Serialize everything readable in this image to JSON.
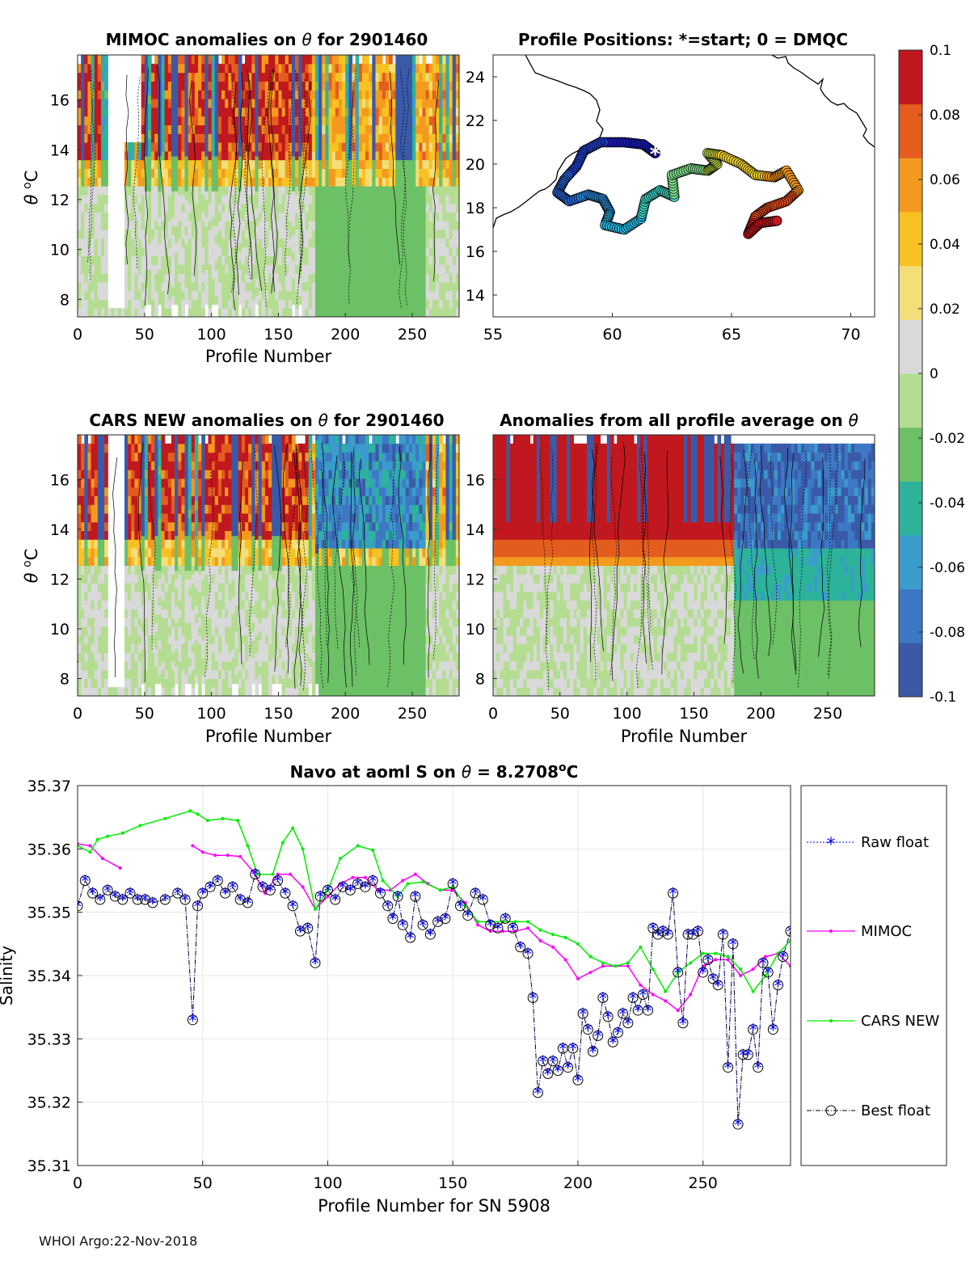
{
  "footer": "WHOI Argo:22-Nov-2018",
  "colorbar": {
    "ticks": [
      "0.1",
      "0.08",
      "0.06",
      "0.04",
      "0.02",
      "0",
      "-0.02",
      "-0.04",
      "-0.06",
      "-0.08",
      "-0.1"
    ],
    "range": [
      -0.1,
      0.1
    ],
    "colors": [
      "#3a5aa8",
      "#3d78c4",
      "#3a9ccb",
      "#2db39a",
      "#6cc066",
      "#b4dd92",
      "#d9d9d9",
      "#f2df7a",
      "#f7c224",
      "#f39a1e",
      "#e35d1f",
      "#c0181e"
    ]
  },
  "chart_data": [
    {
      "type": "heatmap",
      "title": "MIMOC anomalies on θ  for 2901460",
      "title_main": "MIMOC anomalies on ",
      "title_sym": "θ",
      "title_tail": "  for 2901460",
      "xlabel": "Profile Number",
      "ylabel": "θ °C",
      "xlim": [
        0,
        285
      ],
      "ylim": [
        7.3,
        17.8
      ],
      "xticks": [
        "0",
        "50",
        "100",
        "150",
        "200",
        "250"
      ],
      "yticks": [
        "8",
        "10",
        "12",
        "14",
        "16"
      ]
    },
    {
      "type": "scatter",
      "title": "Profile Positions: *=start; 0 = DMQC",
      "xlim": [
        55,
        71
      ],
      "ylim": [
        13,
        25
      ],
      "xticks": [
        "55",
        "60",
        "65",
        "70"
      ],
      "yticks": [
        "14",
        "16",
        "18",
        "20",
        "22",
        "24"
      ],
      "start": {
        "lon": 61.8,
        "lat": 20.5
      },
      "track": [
        [
          61.8,
          20.5
        ],
        [
          61.3,
          20.9
        ],
        [
          60.5,
          21.0
        ],
        [
          59.5,
          21.0
        ],
        [
          58.8,
          20.6
        ],
        [
          58.5,
          19.9
        ],
        [
          58.0,
          19.3
        ],
        [
          57.7,
          18.7
        ],
        [
          58.2,
          18.3
        ],
        [
          59.0,
          18.6
        ],
        [
          59.6,
          18.4
        ],
        [
          59.9,
          17.8
        ],
        [
          59.7,
          17.2
        ],
        [
          60.5,
          17.0
        ],
        [
          61.2,
          17.5
        ],
        [
          61.4,
          18.4
        ],
        [
          62.0,
          18.8
        ],
        [
          62.6,
          18.5
        ],
        [
          62.5,
          19.5
        ],
        [
          63.3,
          19.8
        ],
        [
          64.0,
          19.7
        ],
        [
          64.4,
          20.0
        ],
        [
          64.0,
          20.5
        ],
        [
          64.6,
          20.4
        ],
        [
          65.4,
          20.0
        ],
        [
          66.0,
          19.5
        ],
        [
          66.8,
          19.4
        ],
        [
          67.3,
          19.7
        ],
        [
          67.8,
          18.8
        ],
        [
          67.3,
          18.3
        ],
        [
          66.5,
          18.0
        ],
        [
          66.0,
          17.6
        ],
        [
          65.7,
          16.8
        ],
        [
          66.2,
          17.3
        ],
        [
          66.9,
          17.4
        ]
      ]
    },
    {
      "type": "heatmap",
      "title": "CARS NEW anomalies on θ for 2901460",
      "title_main": "CARS NEW anomalies on ",
      "title_sym": "θ",
      "title_tail": " for 2901460",
      "xlabel": "Profile Number",
      "ylabel": "θ °C",
      "xlim": [
        0,
        285
      ],
      "ylim": [
        7.3,
        17.8
      ],
      "xticks": [
        "0",
        "50",
        "100",
        "150",
        "200",
        "250"
      ],
      "yticks": [
        "8",
        "10",
        "12",
        "14",
        "16"
      ]
    },
    {
      "type": "heatmap",
      "title": "Anomalies from all profile average on θ",
      "title_main": "Anomalies from all profile average on ",
      "title_sym": "θ",
      "title_tail": "",
      "xlabel": "Profile Number",
      "xlim": [
        0,
        285
      ],
      "ylim": [
        7.3,
        17.8
      ],
      "xticks": [
        "0",
        "50",
        "100",
        "150",
        "200",
        "250"
      ],
      "yticks": [
        "8",
        "10",
        "12",
        "14",
        "16"
      ]
    },
    {
      "type": "line",
      "title": "Navo at aoml S on θ = 8.2708°C",
      "title_main": "Navo at aoml S on ",
      "title_sym": "θ",
      "title_tail": " = 8.2708",
      "title_sup": "o",
      "title_unit": "C",
      "xlabel": "Profile Number for SN 5908",
      "ylabel": "Salinity",
      "xlim": [
        0,
        285
      ],
      "ylim": [
        35.31,
        35.37
      ],
      "xticks": [
        "0",
        "50",
        "100",
        "150",
        "200",
        "250"
      ],
      "yticks": [
        "35.31",
        "35.32",
        "35.33",
        "35.34",
        "35.35",
        "35.36",
        "35.37"
      ],
      "legend": [
        "Raw float",
        "MIMOC",
        "CARS NEW",
        "Best float"
      ],
      "series": [
        {
          "name": "MIMOC",
          "color": "#ff00ff",
          "x": [
            0,
            5,
            10,
            17,
            46,
            50,
            55,
            60,
            65,
            70,
            75,
            80,
            85,
            90,
            95,
            100,
            105,
            110,
            115,
            120,
            125,
            130,
            135,
            140,
            145,
            150,
            155,
            160,
            165,
            170,
            175,
            180,
            185,
            190,
            195,
            200,
            205,
            210,
            215,
            220,
            225,
            230,
            235,
            240,
            245,
            250,
            255,
            260,
            265,
            270,
            275,
            280,
            285
          ],
          "y": [
            35.3608,
            35.3605,
            35.3585,
            35.357,
            35.3605,
            35.3595,
            35.359,
            35.359,
            35.3588,
            35.3565,
            35.353,
            35.356,
            35.356,
            35.354,
            35.3505,
            35.3525,
            35.3545,
            35.3555,
            35.3555,
            35.3535,
            35.3535,
            35.355,
            35.356,
            35.3545,
            35.3535,
            35.3535,
            35.3515,
            35.348,
            35.347,
            35.347,
            35.347,
            35.3475,
            35.3455,
            35.3445,
            35.3425,
            35.3395,
            35.3405,
            35.3415,
            35.3415,
            35.3415,
            35.3385,
            35.337,
            35.336,
            35.3345,
            35.337,
            35.3415,
            35.3425,
            35.3425,
            35.34,
            35.341,
            35.343,
            35.3435,
            35.3415
          ]
        },
        {
          "name": "CARS NEW",
          "color": "#00ee00",
          "x": [
            0,
            5,
            8,
            12,
            18,
            25,
            35,
            45,
            48,
            52,
            58,
            64,
            68,
            72,
            78,
            82,
            86,
            90,
            95,
            100,
            105,
            112,
            118,
            122,
            128,
            132,
            138,
            145,
            150,
            155,
            160,
            165,
            170,
            175,
            180,
            185,
            190,
            195,
            200,
            205,
            210,
            215,
            220,
            225,
            230,
            235,
            240,
            245,
            250,
            255,
            260,
            265,
            270,
            275,
            280,
            285
          ],
          "y": [
            35.3605,
            35.3595,
            35.3615,
            35.362,
            35.3625,
            35.3637,
            35.3648,
            35.366,
            35.3655,
            35.3645,
            35.3648,
            35.3645,
            35.3605,
            35.356,
            35.356,
            35.361,
            35.3633,
            35.36,
            35.3505,
            35.3535,
            35.3585,
            35.3605,
            35.3598,
            35.355,
            35.3525,
            35.3545,
            35.3548,
            35.3535,
            35.354,
            35.351,
            35.3485,
            35.3485,
            35.3485,
            35.3485,
            35.3485,
            35.3472,
            35.3465,
            35.346,
            35.345,
            35.343,
            35.342,
            35.3415,
            35.342,
            35.3445,
            35.341,
            35.3375,
            35.3405,
            35.342,
            35.3435,
            35.3435,
            35.343,
            35.341,
            35.3375,
            35.34,
            35.3435,
            35.3455
          ]
        },
        {
          "name": "Best float",
          "color": "#000000",
          "marker_color": "#0000ff",
          "x": [
            0,
            3,
            6,
            9,
            12,
            15,
            18,
            21,
            24,
            27,
            30,
            35,
            40,
            43,
            46,
            48,
            50,
            53,
            56,
            59,
            62,
            65,
            68,
            71,
            74,
            77,
            80,
            83,
            86,
            89,
            92,
            95,
            97,
            100,
            103,
            106,
            109,
            112,
            115,
            118,
            121,
            124,
            126,
            128,
            130,
            133,
            135,
            138,
            141,
            144,
            147,
            150,
            153,
            156,
            159,
            162,
            165,
            168,
            171,
            174,
            177,
            180,
            182,
            184,
            186,
            188,
            190,
            192,
            194,
            196,
            198,
            200,
            202,
            204,
            206,
            208,
            210,
            212,
            214,
            216,
            218,
            220,
            222,
            224,
            226,
            228,
            230,
            232,
            234,
            236,
            238,
            240,
            242,
            244,
            246,
            248,
            250,
            252,
            254,
            256,
            258,
            260,
            262,
            264,
            266,
            268,
            270,
            272,
            274,
            276,
            278,
            280,
            282,
            285
          ],
          "y": [
            35.351,
            35.355,
            35.353,
            35.352,
            35.3535,
            35.3525,
            35.352,
            35.353,
            35.352,
            35.352,
            35.3515,
            35.352,
            35.353,
            35.352,
            35.333,
            35.351,
            35.353,
            35.354,
            35.355,
            35.353,
            35.354,
            35.352,
            35.3515,
            35.356,
            35.354,
            35.3535,
            35.355,
            35.353,
            35.351,
            35.347,
            35.3475,
            35.342,
            35.3525,
            35.3535,
            35.352,
            35.354,
            35.3535,
            35.3545,
            35.354,
            35.355,
            35.353,
            35.351,
            35.349,
            35.3525,
            35.348,
            35.346,
            35.3525,
            35.348,
            35.3465,
            35.3485,
            35.349,
            35.3545,
            35.351,
            35.3495,
            35.353,
            35.352,
            35.348,
            35.3475,
            35.349,
            35.3475,
            35.3445,
            35.3435,
            35.3365,
            35.3215,
            35.3265,
            35.3245,
            35.3265,
            35.325,
            35.3285,
            35.3255,
            35.3285,
            35.3235,
            35.334,
            35.3315,
            35.328,
            35.3305,
            35.3365,
            35.3335,
            35.3295,
            35.331,
            35.334,
            35.3325,
            35.3365,
            35.3345,
            35.337,
            35.3345,
            35.3475,
            35.3465,
            35.347,
            35.3465,
            35.353,
            35.3405,
            35.3325,
            35.3465,
            35.3465,
            35.347,
            35.3405,
            35.3425,
            35.3395,
            35.3385,
            35.3465,
            35.3255,
            35.345,
            35.3165,
            35.3275,
            35.3275,
            35.3315,
            35.3255,
            35.342,
            35.3405,
            35.3315,
            35.3385,
            35.343,
            35.347
          ]
        }
      ]
    }
  ]
}
